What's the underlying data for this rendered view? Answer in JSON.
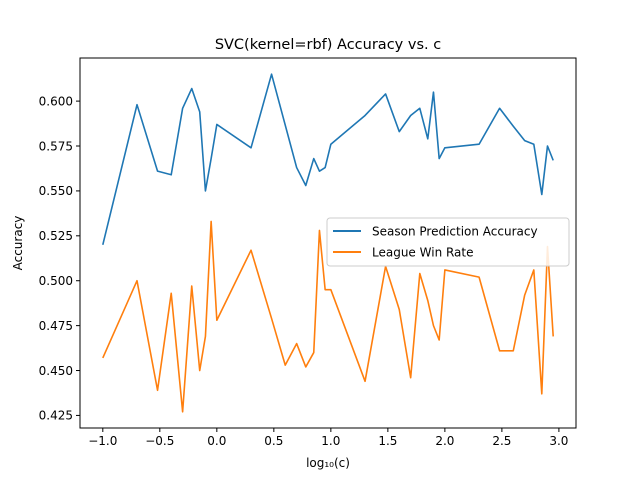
{
  "chart_data": {
    "type": "line",
    "title": "SVC(kernel=rbf) Accuracy vs. c",
    "xlabel": "log₁₀(c)",
    "ylabel": "Accuracy",
    "xlim": [
      -1.2,
      3.15
    ],
    "ylim": [
      0.418,
      0.624
    ],
    "xticks": [
      -1.0,
      -0.5,
      0.0,
      0.5,
      1.0,
      1.5,
      2.0,
      2.5,
      3.0
    ],
    "xtick_labels": [
      "−1.0",
      "−0.5",
      "0.0",
      "0.5",
      "1.0",
      "1.5",
      "2.0",
      "2.5",
      "3.0"
    ],
    "yticks": [
      0.425,
      0.45,
      0.475,
      0.5,
      0.525,
      0.55,
      0.575,
      0.6
    ],
    "ytick_labels": [
      "0.425",
      "0.450",
      "0.475",
      "0.500",
      "0.525",
      "0.550",
      "0.575",
      "0.600"
    ],
    "grid": false,
    "legend_position": "center-right",
    "series": [
      {
        "name": "Season Prediction Accuracy",
        "color": "#1f77b4",
        "x": [
          -1.0,
          -0.7,
          -0.52,
          -0.4,
          -0.3,
          -0.22,
          -0.15,
          -0.1,
          -0.05,
          0.0,
          0.3,
          0.48,
          0.7,
          0.78,
          0.85,
          0.9,
          0.95,
          1.0,
          1.3,
          1.48,
          1.6,
          1.7,
          1.78,
          1.85,
          1.9,
          1.95,
          2.0,
          2.3,
          2.48,
          2.6,
          2.7,
          2.78,
          2.85,
          2.9,
          2.95
        ],
        "y": [
          0.52,
          0.598,
          0.561,
          0.559,
          0.596,
          0.607,
          0.594,
          0.55,
          0.568,
          0.587,
          0.574,
          0.615,
          0.563,
          0.553,
          0.568,
          0.561,
          0.563,
          0.576,
          0.592,
          0.604,
          0.583,
          0.592,
          0.596,
          0.579,
          0.605,
          0.568,
          0.574,
          0.576,
          0.596,
          0.586,
          0.578,
          0.576,
          0.548,
          0.575,
          0.567
        ]
      },
      {
        "name": "League Win Rate",
        "color": "#ff7f0e",
        "x": [
          -1.0,
          -0.7,
          -0.52,
          -0.4,
          -0.3,
          -0.22,
          -0.15,
          -0.1,
          -0.05,
          0.0,
          0.3,
          0.48,
          0.6,
          0.7,
          0.78,
          0.85,
          0.9,
          0.95,
          1.0,
          1.3,
          1.48,
          1.6,
          1.7,
          1.78,
          1.85,
          1.9,
          1.95,
          2.0,
          2.3,
          2.48,
          2.6,
          2.7,
          2.78,
          2.85,
          2.9,
          2.95
        ],
        "y": [
          0.457,
          0.5,
          0.439,
          0.493,
          0.427,
          0.497,
          0.45,
          0.469,
          0.533,
          0.478,
          0.517,
          0.479,
          0.453,
          0.465,
          0.452,
          0.46,
          0.528,
          0.495,
          0.495,
          0.444,
          0.508,
          0.484,
          0.446,
          0.504,
          0.489,
          0.475,
          0.467,
          0.506,
          0.502,
          0.461,
          0.461,
          0.492,
          0.506,
          0.437,
          0.519,
          0.469
        ]
      }
    ]
  }
}
